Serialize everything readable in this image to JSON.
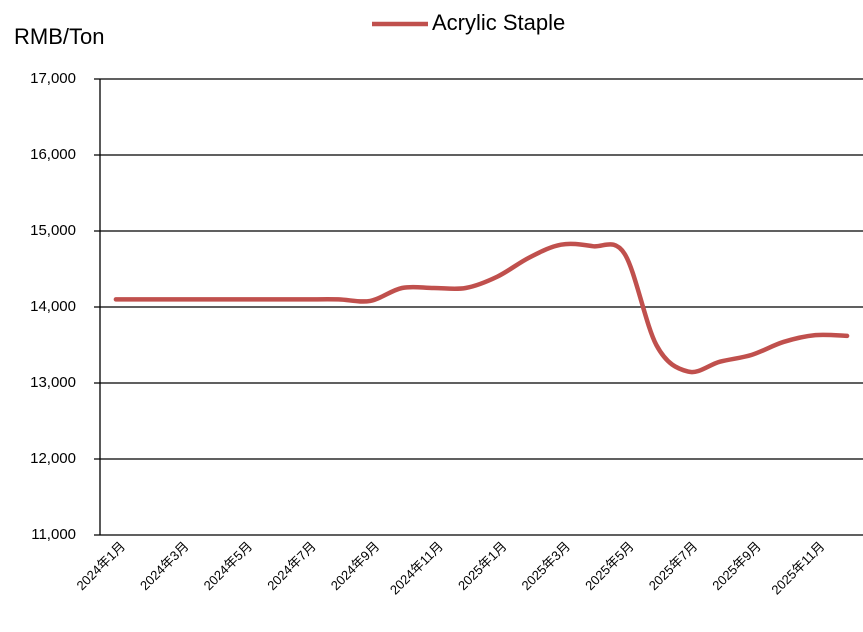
{
  "chart_data": {
    "type": "line",
    "y_label": "RMB/Ton",
    "categories": [
      "2024年1月",
      null,
      "2024年3月",
      null,
      "2024年5月",
      null,
      "2024年7月",
      null,
      "2024年9月",
      null,
      "2024年11月",
      null,
      "2025年1月",
      null,
      "2025年3月",
      null,
      "2025年5月",
      null,
      "2025年7月",
      null,
      "2025年9月",
      null,
      "2025年11月",
      null
    ],
    "series": [
      {
        "name": "Acrylic Staple",
        "color": "#c0504d",
        "values": [
          14100,
          14100,
          14100,
          14100,
          14100,
          14100,
          14100,
          14100,
          14080,
          14250,
          14250,
          14250,
          14400,
          14650,
          14820,
          14800,
          14700,
          13500,
          13150,
          13280,
          13370,
          13540,
          13630,
          13620
        ]
      }
    ],
    "ylim": [
      11000,
      17000
    ],
    "yticks": [
      {
        "value": 11000,
        "label": "11,000"
      },
      {
        "value": 12000,
        "label": "12,000"
      },
      {
        "value": 13000,
        "label": "13,000"
      },
      {
        "value": 14000,
        "label": "14,000"
      },
      {
        "value": 15000,
        "label": "15,000"
      },
      {
        "value": 16000,
        "label": "16,000"
      },
      {
        "value": 17000,
        "label": "17,000"
      }
    ],
    "grid": true,
    "smooth": true,
    "legend": "top"
  }
}
